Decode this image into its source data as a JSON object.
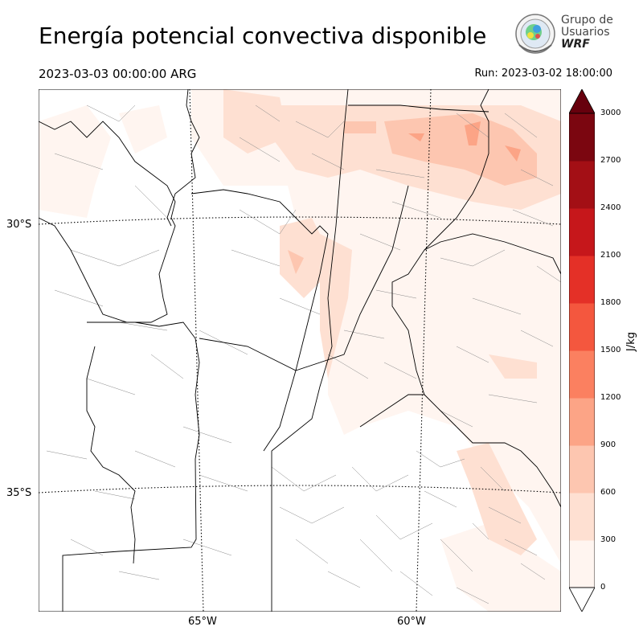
{
  "header": {
    "title": "Energía potencial convectiva disponible",
    "valid_time": "2023-03-03 00:00:00 ARG",
    "run_time": "Run: 2023-03-02 18:00:00"
  },
  "logo": {
    "line1": "Grupo de",
    "line2": "Usuarios",
    "line3": "WRF"
  },
  "map": {
    "lat_labels": [
      "30°S",
      "35°S"
    ],
    "lon_labels": [
      "65°W",
      "60°W"
    ]
  },
  "colorbar": {
    "unit": "J/kg",
    "ticks": [
      "0",
      "300",
      "600",
      "900",
      "1200",
      "1500",
      "1800",
      "2100",
      "2400",
      "2700",
      "3000"
    ],
    "colors": [
      "#fff5f0",
      "#fee0d2",
      "#fdc6b0",
      "#fca486",
      "#fb8060",
      "#f4573e",
      "#e43027",
      "#c6171b",
      "#a30f15",
      "#7b0610"
    ],
    "extend": "both"
  }
}
